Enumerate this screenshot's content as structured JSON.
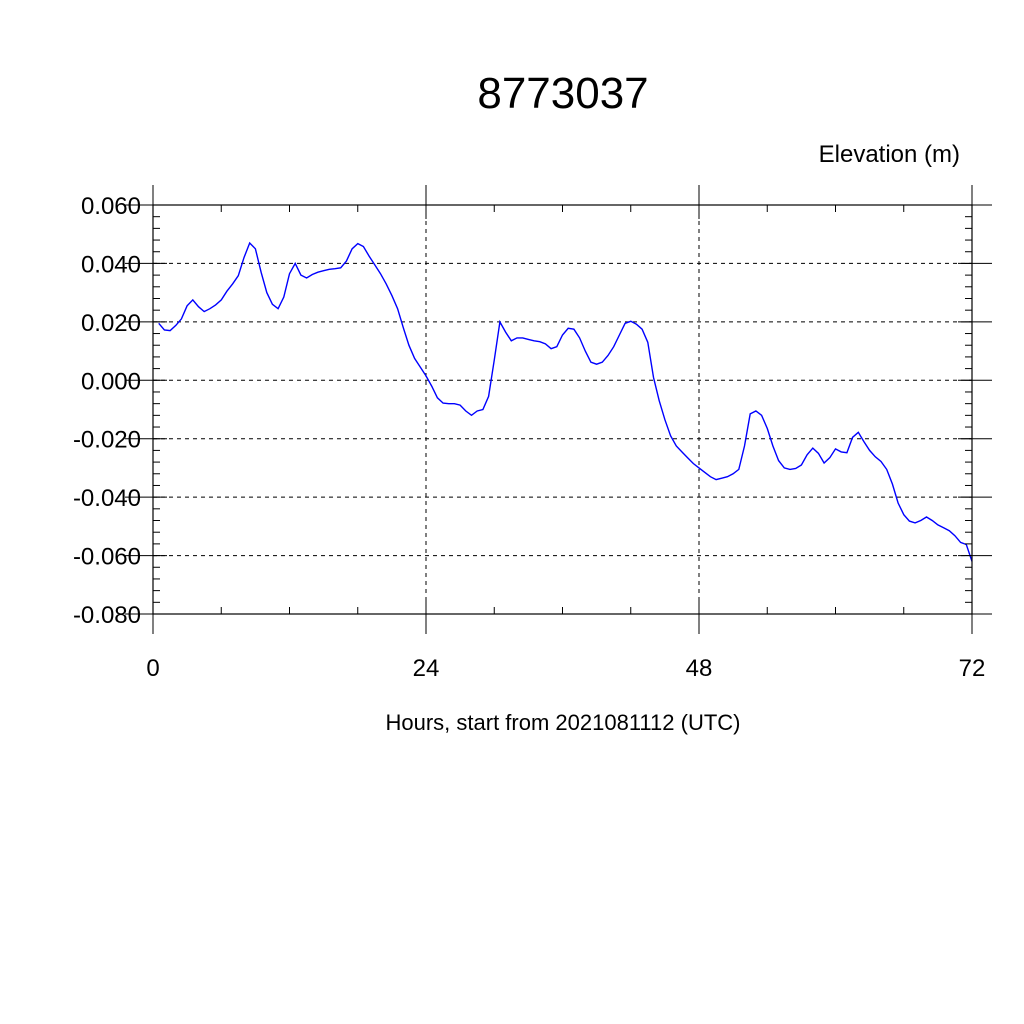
{
  "chart_data": {
    "type": "line",
    "title": "8773037",
    "units_label": "Elevation (m)",
    "xlabel": "Hours, start from 2021081112 (UTC)",
    "ylabel": "",
    "xlim": [
      0,
      72
    ],
    "ylim": [
      -0.08,
      0.06
    ],
    "x_ticks": [
      0,
      24,
      48,
      72
    ],
    "x_tick_labels": [
      "0",
      "24",
      "48",
      "72"
    ],
    "x_minor_step": 6,
    "y_ticks": [
      0.06,
      0.04,
      0.02,
      0.0,
      -0.02,
      -0.04,
      -0.06,
      -0.08
    ],
    "y_tick_labels": [
      "0.060",
      "0.040",
      "0.020",
      "0.000",
      "-0.020",
      "-0.040",
      "-0.060",
      "-0.080"
    ],
    "y_minor_step": 0.004,
    "grid": true,
    "series_color": "#0000ff",
    "series": [
      {
        "x": [
          0.5,
          1,
          1.5,
          2,
          2.5,
          3,
          3.5,
          4,
          4.5,
          5,
          5.5,
          6,
          6.5,
          7,
          7.5,
          8,
          8.5,
          9,
          9.5,
          10,
          10.5,
          11,
          11.5,
          12,
          12.5,
          13,
          13.5,
          14,
          14.5,
          15,
          15.5,
          16,
          16.5,
          17,
          17.5,
          18,
          18.5,
          19,
          19.5,
          20,
          20.5,
          21,
          21.5,
          22,
          22.5,
          23,
          23.5,
          24,
          24.5,
          25,
          25.5,
          26,
          26.5,
          27,
          27.5,
          28,
          28.5,
          29,
          29.5,
          30,
          30.5,
          31,
          31.5,
          32,
          32.5,
          33,
          33.5,
          34,
          34.5,
          35,
          35.5,
          36,
          36.5,
          37,
          37.5,
          38,
          38.5,
          39,
          39.5,
          40,
          40.5,
          41,
          41.5,
          42,
          42.5,
          43,
          43.5,
          44,
          44.5,
          45,
          45.5,
          46,
          46.5,
          47,
          47.5,
          48,
          48.5,
          49,
          49.5,
          50,
          50.5,
          51,
          51.5,
          52,
          52.5,
          53,
          53.5,
          54,
          54.5,
          55,
          55.5,
          56,
          56.5,
          57,
          57.5,
          58,
          58.5,
          59,
          59.5,
          60,
          60.5,
          61,
          61.5,
          62,
          62.5,
          63,
          63.5,
          64,
          64.5,
          65,
          65.5,
          66,
          66.5,
          67,
          67.5,
          68,
          68.5,
          69,
          69.5,
          70,
          70.5,
          71,
          71.5,
          72
        ],
        "values": [
          0.0195,
          0.0172,
          0.017,
          0.0188,
          0.021,
          0.0255,
          0.0275,
          0.0252,
          0.0235,
          0.0245,
          0.0258,
          0.0275,
          0.0305,
          0.033,
          0.0358,
          0.042,
          0.047,
          0.045,
          0.037,
          0.03,
          0.026,
          0.0245,
          0.0285,
          0.0365,
          0.04,
          0.036,
          0.035,
          0.0362,
          0.037,
          0.0375,
          0.038,
          0.0382,
          0.0385,
          0.0408,
          0.045,
          0.0468,
          0.0458,
          0.0425,
          0.0395,
          0.0365,
          0.033,
          0.029,
          0.0245,
          0.018,
          0.012,
          0.0075,
          0.0045,
          0.0015,
          -0.002,
          -0.006,
          -0.0078,
          -0.008,
          -0.008,
          -0.0085,
          -0.0105,
          -0.012,
          -0.0105,
          -0.01,
          -0.0055,
          0.007,
          0.02,
          0.0165,
          0.0135,
          0.0145,
          0.0145,
          0.014,
          0.0135,
          0.0132,
          0.0125,
          0.0108,
          0.0115,
          0.0155,
          0.0178,
          0.0175,
          0.0145,
          0.01,
          0.0062,
          0.0055,
          0.0062,
          0.0085,
          0.0115,
          0.0155,
          0.0195,
          0.0202,
          0.0192,
          0.0175,
          0.013,
          0.001,
          -0.007,
          -0.0135,
          -0.019,
          -0.0225,
          -0.0245,
          -0.0265,
          -0.0285,
          -0.03,
          -0.0315,
          -0.033,
          -0.034,
          -0.0335,
          -0.033,
          -0.032,
          -0.0305,
          -0.0225,
          -0.0115,
          -0.0105,
          -0.012,
          -0.0165,
          -0.0225,
          -0.0275,
          -0.03,
          -0.0305,
          -0.0302,
          -0.029,
          -0.0255,
          -0.0232,
          -0.025,
          -0.0283,
          -0.0265,
          -0.0235,
          -0.0245,
          -0.0248,
          -0.0195,
          -0.0178,
          -0.021,
          -0.024,
          -0.0262,
          -0.0278,
          -0.0305,
          -0.0355,
          -0.042,
          -0.046,
          -0.0482,
          -0.0488,
          -0.048,
          -0.0468,
          -0.048,
          -0.0495,
          -0.0505,
          -0.0515,
          -0.0532,
          -0.0555,
          -0.0562,
          -0.062
        ]
      }
    ]
  }
}
